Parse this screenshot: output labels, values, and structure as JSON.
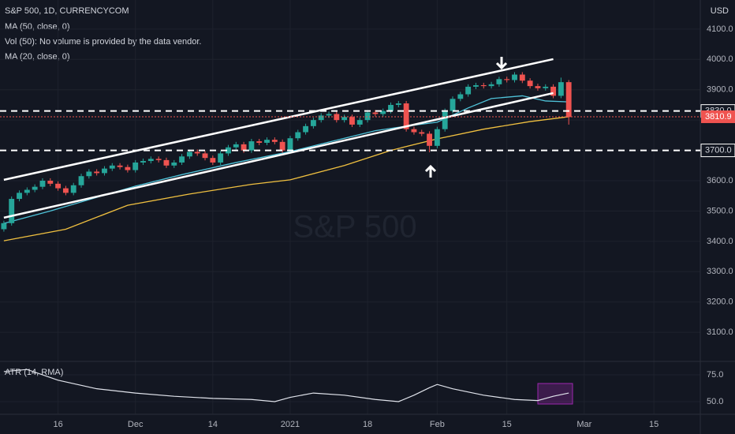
{
  "chart_data": {
    "type": "candlestick",
    "title": "S&P 500, 1D, CURRENCYCOM",
    "indicators": [
      "MA (50, close, 0)",
      "Vol (50): No volume is provided by the data vendor.",
      "MA (20, close, 0)"
    ],
    "currency": "USD",
    "watermark": "S&P 500",
    "up_color": "#26a69a",
    "down_color": "#ef5350",
    "grid": true,
    "x": [
      0,
      1,
      2,
      3,
      4,
      5,
      6,
      7,
      8,
      9,
      10,
      11,
      12,
      13,
      14,
      15,
      16,
      17,
      18,
      19,
      20,
      21,
      22,
      23,
      24,
      25,
      26,
      27,
      28,
      29,
      30,
      31,
      32,
      33,
      34,
      35,
      36,
      37,
      38,
      39,
      40,
      41,
      42,
      43,
      44,
      45,
      46,
      47,
      48,
      49,
      50,
      51,
      52,
      53,
      54,
      55,
      56,
      57,
      58,
      59,
      60,
      61,
      62,
      63,
      64,
      65,
      66,
      67,
      68,
      69,
      70,
      71,
      72,
      73
    ],
    "open": [
      3440,
      3460,
      3540,
      3560,
      3570,
      3580,
      3600,
      3590,
      3575,
      3560,
      3585,
      3615,
      3630,
      3625,
      3640,
      3650,
      3645,
      3635,
      3660,
      3665,
      3672,
      3668,
      3650,
      3660,
      3680,
      3695,
      3690,
      3675,
      3660,
      3690,
      3710,
      3720,
      3700,
      3730,
      3725,
      3735,
      3728,
      3700,
      3740,
      3760,
      3780,
      3800,
      3815,
      3820,
      3800,
      3810,
      3785,
      3800,
      3825,
      3820,
      3830,
      3850,
      3855,
      3770,
      3760,
      3755,
      3715,
      3770,
      3830,
      3870,
      3885,
      3910,
      3915,
      3912,
      3918,
      3935,
      3932,
      3950,
      3930,
      3912,
      3905,
      3910,
      3880,
      3925
    ],
    "high": [
      3468,
      3548,
      3568,
      3578,
      3588,
      3608,
      3608,
      3598,
      3583,
      3593,
      3623,
      3638,
      3638,
      3648,
      3658,
      3658,
      3653,
      3668,
      3673,
      3680,
      3680,
      3676,
      3668,
      3688,
      3703,
      3703,
      3698,
      3683,
      3698,
      3718,
      3728,
      3728,
      3738,
      3738,
      3743,
      3743,
      3736,
      3748,
      3768,
      3788,
      3808,
      3823,
      3828,
      3828,
      3818,
      3818,
      3808,
      3833,
      3833,
      3838,
      3858,
      3863,
      3863,
      3778,
      3768,
      3763,
      3778,
      3838,
      3878,
      3893,
      3918,
      3923,
      3923,
      3926,
      3943,
      3943,
      3958,
      3958,
      3938,
      3920,
      3918,
      3918,
      3940,
      3932
    ],
    "low": [
      3432,
      3452,
      3532,
      3552,
      3562,
      3572,
      3582,
      3567,
      3552,
      3552,
      3577,
      3607,
      3617,
      3617,
      3632,
      3637,
      3627,
      3627,
      3652,
      3657,
      3660,
      3642,
      3642,
      3652,
      3672,
      3682,
      3667,
      3652,
      3652,
      3682,
      3702,
      3692,
      3692,
      3717,
      3717,
      3720,
      3692,
      3692,
      3732,
      3752,
      3772,
      3792,
      3807,
      3792,
      3792,
      3777,
      3777,
      3792,
      3812,
      3812,
      3822,
      3842,
      3762,
      3752,
      3747,
      3694,
      3707,
      3762,
      3822,
      3862,
      3877,
      3902,
      3904,
      3904,
      3910,
      3924,
      3924,
      3922,
      3904,
      3897,
      3897,
      3872,
      3872,
      3785
    ],
    "close": [
      3460,
      3540,
      3560,
      3570,
      3580,
      3600,
      3590,
      3575,
      3560,
      3585,
      3615,
      3630,
      3625,
      3640,
      3650,
      3645,
      3635,
      3660,
      3665,
      3672,
      3668,
      3650,
      3660,
      3680,
      3695,
      3690,
      3675,
      3660,
      3690,
      3710,
      3720,
      3700,
      3730,
      3725,
      3735,
      3728,
      3700,
      3740,
      3760,
      3780,
      3800,
      3815,
      3820,
      3800,
      3810,
      3785,
      3800,
      3825,
      3820,
      3830,
      3850,
      3855,
      3770,
      3760,
      3755,
      3715,
      3770,
      3830,
      3870,
      3885,
      3910,
      3915,
      3912,
      3918,
      3935,
      3932,
      3950,
      3930,
      3912,
      3905,
      3910,
      3880,
      3925,
      3810
    ],
    "moving_averages": [
      {
        "color": "#f0c040",
        "x": [
          0,
          8,
          16,
          24,
          32,
          37,
          44,
          50,
          56,
          62,
          68,
          73
        ],
        "values": [
          3402,
          3440,
          3519,
          3556,
          3588,
          3603,
          3650,
          3700,
          3738,
          3770,
          3795,
          3811
        ]
      },
      {
        "color": "#4fc3d9",
        "x": [
          0,
          6,
          12,
          17,
          23,
          30,
          37,
          44,
          48,
          52,
          56,
          60,
          63,
          67,
          70,
          73
        ],
        "values": [
          3459,
          3500,
          3545,
          3582,
          3620,
          3660,
          3696,
          3740,
          3765,
          3780,
          3793,
          3840,
          3871,
          3880,
          3863,
          3860
        ]
      }
    ],
    "trend_lines": [
      {
        "x": [
          0,
          71
        ],
        "y": [
          3603,
          4001
        ]
      },
      {
        "x": [
          0,
          71
        ],
        "y": [
          3478,
          3889
        ]
      }
    ],
    "price_lines": [
      {
        "value": 3830,
        "label": "3830.0"
      },
      {
        "value": 3700,
        "label": "3700.0"
      }
    ],
    "last_price": {
      "value": 3810.9,
      "label": "3810.9"
    },
    "xlim": [
      -0.5,
      90
    ],
    "xticks": [
      {
        "value": 7,
        "label": "16"
      },
      {
        "value": 17,
        "label": "Dec"
      },
      {
        "value": 27,
        "label": "14"
      },
      {
        "value": 37,
        "label": "2021"
      },
      {
        "value": 47,
        "label": "18"
      },
      {
        "value": 56,
        "label": "Feb"
      },
      {
        "value": 65,
        "label": "15"
      },
      {
        "value": 75,
        "label": "Mar"
      },
      {
        "value": 84,
        "label": "15"
      }
    ],
    "ylim": [
      3004,
      4196
    ],
    "yticks": [
      {
        "value": 3100,
        "label": "3100.0"
      },
      {
        "value": 3200,
        "label": "3200.0"
      },
      {
        "value": 3300,
        "label": "3300.0"
      },
      {
        "value": 3400,
        "label": "3400.0"
      },
      {
        "value": 3500,
        "label": "3500.0"
      },
      {
        "value": 3600,
        "label": "3600.0"
      },
      {
        "value": 3700,
        "label": "3700.0"
      },
      {
        "value": 3800,
        "label": "3800.0"
      },
      {
        "value": 3900,
        "label": "3900.0"
      },
      {
        "value": 4000,
        "label": "4000.0"
      },
      {
        "value": 4100,
        "label": "4100.0"
      }
    ],
    "atr": {
      "title": "ATR (14, RMA)",
      "color": "#e0e3eb",
      "x": [
        0,
        3,
        7,
        12,
        17,
        22,
        27,
        32,
        35,
        37,
        40,
        44,
        48,
        51,
        53,
        55,
        56,
        58,
        62,
        66,
        69,
        71,
        73
      ],
      "values": [
        78,
        80,
        70,
        62,
        58,
        55,
        53,
        52,
        50,
        54,
        58,
        56,
        52,
        50,
        56,
        63,
        66,
        62,
        56,
        52,
        51,
        55,
        58
      ],
      "ylim": [
        38.2,
        87.5
      ],
      "yticks": [
        {
          "value": 50,
          "label": "50.0"
        },
        {
          "value": 75,
          "label": "75.0"
        }
      ]
    }
  }
}
